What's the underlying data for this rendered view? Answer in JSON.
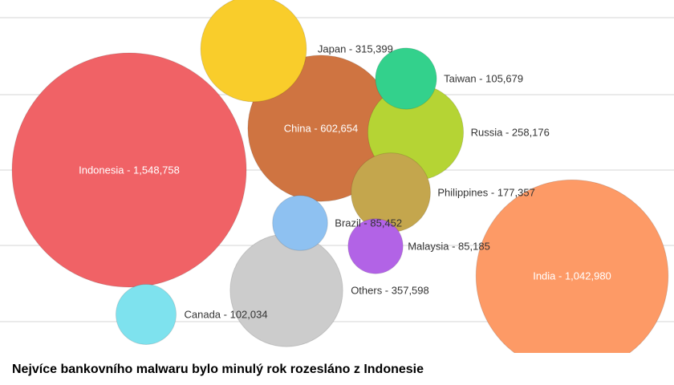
{
  "chart_data": {
    "type": "bubble",
    "title": "",
    "caption": "Nejvíce bankovního malwaru bylo minulý rok rozesláno z Indonesie",
    "grid": true,
    "legend": "none",
    "series": [
      {
        "name": "Indonesia",
        "value": 1548758,
        "label": "Indonesia - 1,548,758",
        "color": "#f06266"
      },
      {
        "name": "India",
        "value": 1042980,
        "label": "India - 1,042,980",
        "color": "#fd9a66"
      },
      {
        "name": "China",
        "value": 602654,
        "label": "China - 602,654",
        "color": "#cf7441"
      },
      {
        "name": "Others",
        "value": 357598,
        "label": "Others - 357,598",
        "color": "#cccccc"
      },
      {
        "name": "Japan",
        "value": 315399,
        "label": "Japan - 315,399",
        "color": "#f9cd2b"
      },
      {
        "name": "Russia",
        "value": 258176,
        "label": "Russia - 258,176",
        "color": "#b5d434"
      },
      {
        "name": "Philippines",
        "value": 177357,
        "label": "Philippines - 177,357",
        "color": "#c4a64d"
      },
      {
        "name": "Taiwan",
        "value": 105679,
        "label": "Taiwan - 105,679",
        "color": "#33d18c"
      },
      {
        "name": "Canada",
        "value": 102034,
        "label": "Canada - 102,034",
        "color": "#7ee2ee"
      },
      {
        "name": "Brazil",
        "value": 85452,
        "label": "Brazil - 85,452",
        "color": "#8ec1f1"
      },
      {
        "name": "Malaysia",
        "value": 85185,
        "label": "Malaysia - 85,185",
        "color": "#b263e6"
      }
    ]
  }
}
